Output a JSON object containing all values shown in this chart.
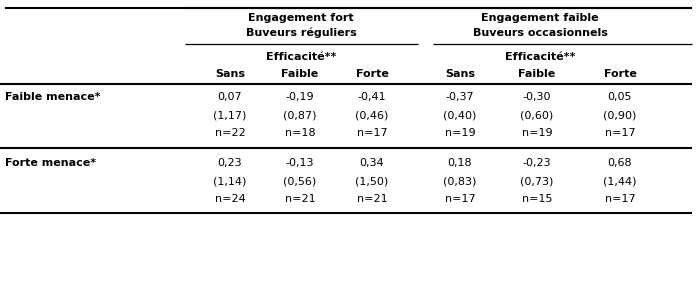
{
  "eng_fort": "Engagement fort",
  "eng_faible": "Engagement faible",
  "buv_reg": "Buveurs réguliers",
  "buv_occ": "Buveurs occasionnels",
  "efficacite": "Efficacité**",
  "col_headers": [
    "Sans",
    "Faible",
    "Forte",
    "Sans",
    "Faible",
    "Forte"
  ],
  "row_faible_label": "Faible menace*",
  "row_forte_label": "Forte menace*",
  "row_faible_mean": [
    "0,07",
    "-0,19",
    "-0,41",
    "-0,37",
    "-0,30",
    "0,05"
  ],
  "row_faible_sd": [
    "(1,17)",
    "(0,87)",
    "(0,46)",
    "(0,40)",
    "(0,60)",
    "(0,90)"
  ],
  "row_faible_n": [
    "n=22",
    "n=18",
    "n=17",
    "n=19",
    "n=19",
    "n=17"
  ],
  "row_forte_mean": [
    "0,23",
    "-0,13",
    "0,34",
    "0,18",
    "-0,23",
    "0,68"
  ],
  "row_forte_sd": [
    "(1,14)",
    "(0,56)",
    "(1,50)",
    "(0,83)",
    "(0,73)",
    "(1,44)"
  ],
  "row_forte_n": [
    "n=24",
    "n=21",
    "n=21",
    "n=17",
    "n=15",
    "n=17"
  ],
  "background": "#ffffff"
}
